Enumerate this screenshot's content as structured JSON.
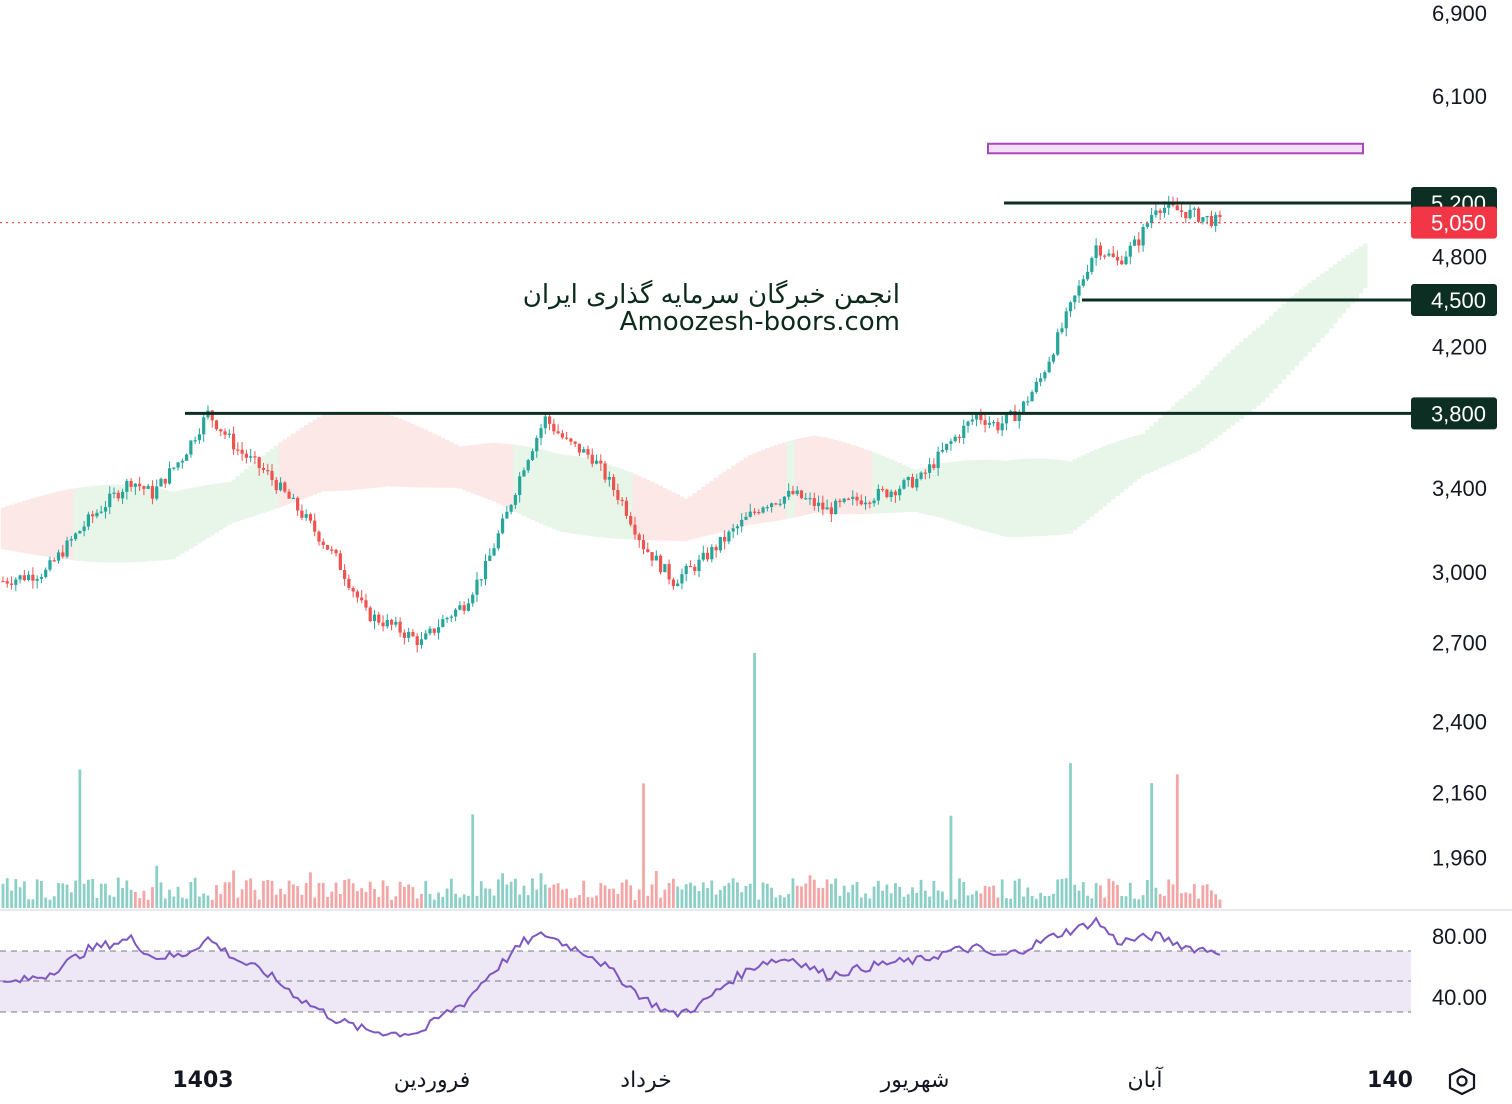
{
  "watermark": {
    "line1": "انجمن خبرگان سرمایه گذاری ایران",
    "line2": "Amoozesh-boors.com"
  },
  "colors": {
    "up": "#26a69a",
    "down": "#ef5350",
    "level_line": "#0d2e23",
    "level_badge": "#0d2e23",
    "price_badge": "#f23645",
    "cloud_bull": "#e8f5e9",
    "cloud_bear": "#fde8e8",
    "rsi_line": "#7e57c2",
    "rsi_band": "#ede7f6",
    "target_box_fill": "#f3e0f7",
    "target_box_stroke": "#ab47bc"
  },
  "chart_data": {
    "type": "candlestick",
    "price_axis": {
      "scale": "log",
      "ticks": [
        "6,900",
        "6,100",
        "4,800",
        "4,200",
        "3,400",
        "3,000",
        "2,700",
        "2,400",
        "2,160",
        "1,960"
      ]
    },
    "time_axis": {
      "labels": [
        "1403",
        "فروردین",
        "خرداد",
        "شهریور",
        "آبان",
        "140"
      ]
    },
    "last_price": {
      "value": 5050,
      "label": "5,050"
    },
    "levels": [
      {
        "value": 5200,
        "label": "5,200"
      },
      {
        "value": 4500,
        "label": "4,500"
      },
      {
        "value": 3800,
        "label": "3,800"
      }
    ],
    "target_zone": {
      "low": 5600,
      "high": 5680
    },
    "price_path": [
      [
        0,
        2960
      ],
      [
        10,
        3000
      ],
      [
        20,
        3240
      ],
      [
        30,
        3440
      ],
      [
        35,
        3370
      ],
      [
        42,
        3560
      ],
      [
        48,
        3800
      ],
      [
        55,
        3600
      ],
      [
        62,
        3470
      ],
      [
        70,
        3270
      ],
      [
        78,
        3060
      ],
      [
        85,
        2820
      ],
      [
        92,
        2760
      ],
      [
        98,
        2700
      ],
      [
        103,
        2790
      ],
      [
        108,
        2860
      ],
      [
        113,
        3020
      ],
      [
        118,
        3270
      ],
      [
        122,
        3520
      ],
      [
        127,
        3770
      ],
      [
        132,
        3640
      ],
      [
        138,
        3560
      ],
      [
        145,
        3330
      ],
      [
        150,
        3120
      ],
      [
        157,
        2960
      ],
      [
        163,
        3040
      ],
      [
        170,
        3170
      ],
      [
        178,
        3320
      ],
      [
        185,
        3370
      ],
      [
        193,
        3290
      ],
      [
        200,
        3340
      ],
      [
        207,
        3380
      ],
      [
        215,
        3450
      ],
      [
        222,
        3640
      ],
      [
        228,
        3790
      ],
      [
        233,
        3730
      ],
      [
        238,
        3810
      ],
      [
        243,
        4000
      ],
      [
        247,
        4250
      ],
      [
        252,
        4580
      ],
      [
        256,
        4880
      ],
      [
        261,
        4760
      ],
      [
        266,
        4920
      ],
      [
        270,
        5180
      ],
      [
        278,
        5120
      ],
      [
        285,
        5050
      ]
    ],
    "cloud_path": [
      [
        0,
        3160
      ],
      [
        20,
        3150
      ],
      [
        40,
        3150
      ],
      [
        60,
        3350
      ],
      [
        75,
        3500
      ],
      [
        90,
        3520
      ],
      [
        105,
        3470
      ],
      [
        115,
        3420
      ],
      [
        130,
        3300
      ],
      [
        145,
        3250
      ],
      [
        160,
        3200
      ],
      [
        175,
        3320
      ],
      [
        190,
        3390
      ],
      [
        205,
        3360
      ],
      [
        220,
        3330
      ],
      [
        235,
        3270
      ],
      [
        250,
        3280
      ],
      [
        265,
        3500
      ],
      [
        280,
        3700
      ],
      [
        295,
        4000
      ],
      [
        310,
        4400
      ],
      [
        320,
        4700
      ]
    ],
    "volume_spikes": [
      18,
      110,
      150,
      176,
      222,
      250,
      269,
      275
    ],
    "rsi": {
      "levels": [
        70,
        50,
        30
      ],
      "tick_labels": [
        "80.00",
        "40.00"
      ],
      "values": [
        [
          0,
          48
        ],
        [
          10,
          54
        ],
        [
          20,
          71
        ],
        [
          30,
          78
        ],
        [
          35,
          66
        ],
        [
          42,
          67
        ],
        [
          48,
          78
        ],
        [
          55,
          64
        ],
        [
          62,
          55
        ],
        [
          70,
          38
        ],
        [
          78,
          25
        ],
        [
          85,
          18
        ],
        [
          92,
          16
        ],
        [
          98,
          17
        ],
        [
          103,
          28
        ],
        [
          108,
          36
        ],
        [
          113,
          52
        ],
        [
          118,
          65
        ],
        [
          122,
          76
        ],
        [
          127,
          81
        ],
        [
          132,
          74
        ],
        [
          138,
          67
        ],
        [
          145,
          51
        ],
        [
          150,
          39
        ],
        [
          157,
          28
        ],
        [
          163,
          34
        ],
        [
          170,
          50
        ],
        [
          178,
          63
        ],
        [
          185,
          65
        ],
        [
          193,
          54
        ],
        [
          200,
          58
        ],
        [
          207,
          62
        ],
        [
          215,
          64
        ],
        [
          222,
          70
        ],
        [
          228,
          72
        ],
        [
          233,
          66
        ],
        [
          238,
          70
        ],
        [
          243,
          76
        ],
        [
          247,
          81
        ],
        [
          252,
          85
        ],
        [
          256,
          90
        ],
        [
          261,
          76
        ],
        [
          266,
          78
        ],
        [
          270,
          80
        ],
        [
          278,
          72
        ],
        [
          285,
          70
        ]
      ]
    }
  }
}
